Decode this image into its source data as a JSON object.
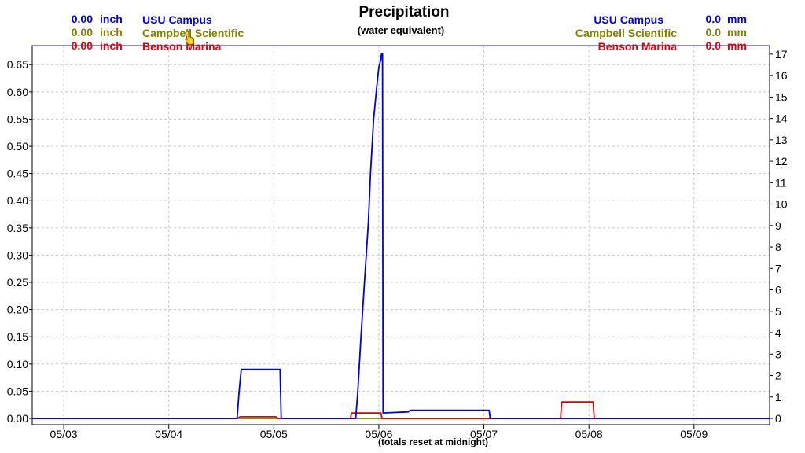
{
  "chart_data": {
    "type": "line",
    "title": "Precipitation",
    "subtitle": "(water equivalent)",
    "note": "(totals reset at midnight)",
    "x_tick_labels": [
      "05/03",
      "05/04",
      "05/05",
      "05/06",
      "05/07",
      "05/08",
      "05/09"
    ],
    "x_range_days": [
      2.7,
      9.72
    ],
    "y_left": {
      "unit": "inch",
      "range": [
        0,
        0.685
      ],
      "ticks": [
        "0.00",
        "0.05",
        "0.10",
        "0.15",
        "0.20",
        "0.25",
        "0.30",
        "0.35",
        "0.40",
        "0.45",
        "0.50",
        "0.55",
        "0.60",
        "0.65"
      ]
    },
    "y_right": {
      "unit": "mm",
      "range": [
        0,
        17.4
      ],
      "ticks": [
        "0",
        "1",
        "2",
        "3",
        "4",
        "5",
        "6",
        "7",
        "8",
        "9",
        "10",
        "11",
        "12",
        "13",
        "14",
        "15",
        "16",
        "17"
      ]
    },
    "grid": true,
    "legend_left": [
      {
        "value": "0.00",
        "unit": "inch",
        "name": "USU Campus",
        "color": "#0000e0"
      },
      {
        "value": "0.00",
        "unit": "inch",
        "name": "Campbell Scientific",
        "color": "#808000"
      },
      {
        "value": "0.00",
        "unit": "inch",
        "name": "Benson Marina",
        "color": "#e00000"
      }
    ],
    "legend_right": [
      {
        "name": "USU Campus",
        "value": "0.0",
        "unit": "mm",
        "color": "#0000e0"
      },
      {
        "name": "Campbell Scientific",
        "value": "0.0",
        "unit": "mm",
        "color": "#808000"
      },
      {
        "name": "Benson Marina",
        "value": "0.0",
        "unit": "mm",
        "color": "#e00000"
      }
    ],
    "series": [
      {
        "name": "Campbell Scientific",
        "color": "#808000",
        "x": [
          2.7,
          9.72
        ],
        "y": [
          0,
          0
        ]
      },
      {
        "name": "Benson Marina",
        "color": "#e00000",
        "x": [
          2.7,
          4.65,
          4.68,
          5.02,
          5.03,
          5.73,
          5.74,
          6.02,
          6.03,
          7.73,
          7.74,
          8.04,
          8.05,
          9.72
        ],
        "y": [
          0,
          0,
          0.003,
          0.003,
          0,
          0,
          0.01,
          0.01,
          0,
          0,
          0.03,
          0.03,
          0,
          0
        ]
      },
      {
        "name": "USU Campus",
        "color": "#0000e0",
        "x": [
          2.7,
          4.65,
          4.67,
          4.69,
          5.06,
          5.07,
          5.78,
          5.8,
          5.83,
          5.86,
          5.88,
          5.9,
          5.92,
          5.95,
          5.98,
          6.0,
          6.02,
          6.025,
          6.035,
          6.04,
          6.28,
          6.3,
          7.05,
          7.06,
          9.72
        ],
        "y": [
          0,
          0,
          0.05,
          0.09,
          0.09,
          0,
          0,
          0.05,
          0.15,
          0.24,
          0.3,
          0.36,
          0.45,
          0.55,
          0.61,
          0.645,
          0.66,
          0.67,
          0.67,
          0.01,
          0.012,
          0.015,
          0.015,
          0,
          0
        ]
      }
    ]
  }
}
